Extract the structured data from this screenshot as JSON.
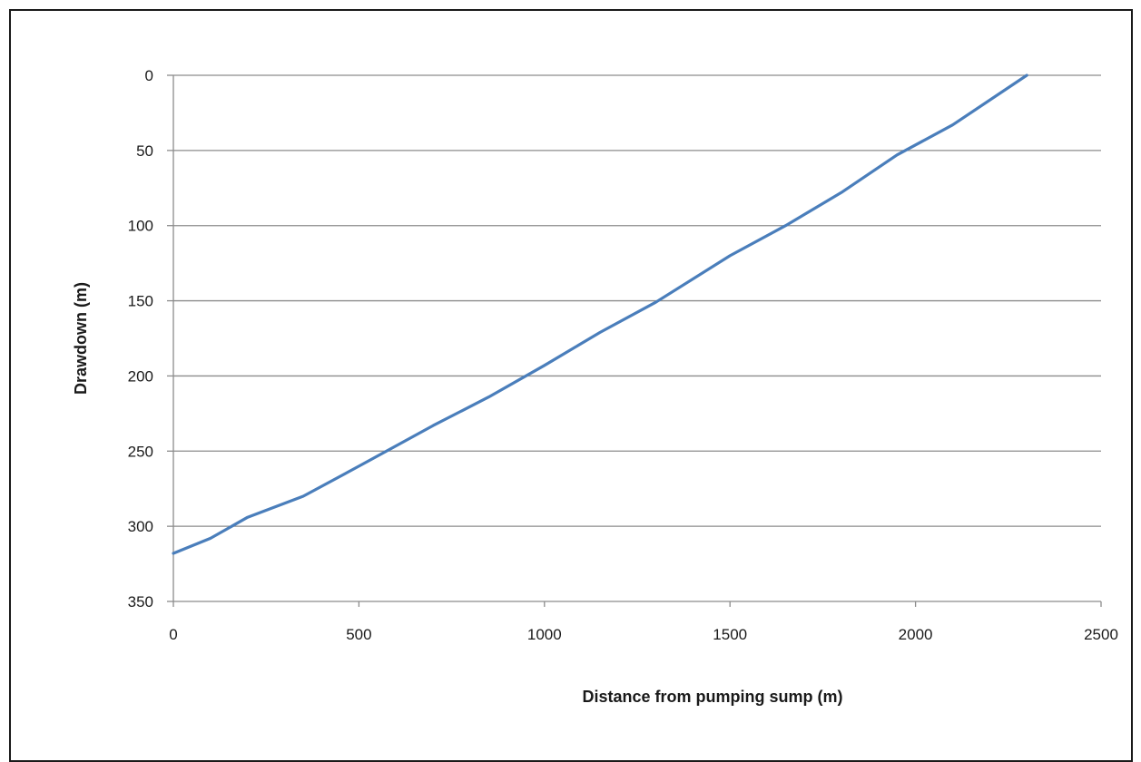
{
  "chart_data": {
    "type": "line",
    "title": "",
    "xlabel": "Distance  from pumping sump (m)",
    "ylabel": "Drawdown  (m)",
    "xlim": [
      0,
      2500
    ],
    "ylim": [
      0,
      350
    ],
    "y_inverted": true,
    "x_ticks": [
      0,
      500,
      1000,
      1500,
      2000,
      2500
    ],
    "y_ticks": [
      0,
      50,
      100,
      150,
      200,
      250,
      300,
      350
    ],
    "grid": "horizontal",
    "legend": "none",
    "series": [
      {
        "color": "#4a7ebb",
        "x": [
          0,
          100,
          200,
          350,
          500,
          700,
          850,
          1000,
          1150,
          1300,
          1500,
          1650,
          1800,
          1950,
          2100,
          2300
        ],
        "y": [
          318,
          308,
          294,
          280,
          260,
          233,
          214,
          193,
          171,
          151,
          120,
          100,
          78,
          53,
          33,
          0
        ]
      }
    ]
  }
}
